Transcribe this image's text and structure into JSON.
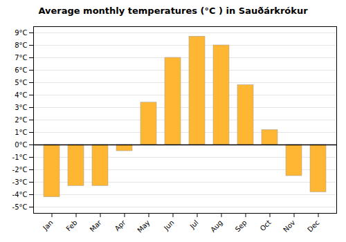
{
  "chart_data": {
    "type": "bar",
    "title": "Average monthly temperatures (°C ) in Sauðárkrókur",
    "categories": [
      "Jan",
      "Feb",
      "Mar",
      "Apr",
      "May",
      "Jun",
      "Jul",
      "Aug",
      "Sep",
      "Oct",
      "Nov",
      "Dec"
    ],
    "values": [
      -4.2,
      -3.3,
      -3.3,
      -0.5,
      3.4,
      7.0,
      8.7,
      8.0,
      4.8,
      1.2,
      -2.5,
      -3.8
    ],
    "color": "#FFB733",
    "ylim": [
      -5.5,
      9.5
    ],
    "yticks": [
      {
        "value": -5,
        "label": "-5°C"
      },
      {
        "value": -4,
        "label": "-4°C"
      },
      {
        "value": -3,
        "label": "-3°C"
      },
      {
        "value": -2,
        "label": "-2°C"
      },
      {
        "value": -1,
        "label": "-1°C"
      },
      {
        "value": 0,
        "label": "0°C"
      },
      {
        "value": 1,
        "label": "1°C"
      },
      {
        "value": 2,
        "label": "2°C"
      },
      {
        "value": 3,
        "label": "3°C"
      },
      {
        "value": 4,
        "label": "4°C"
      },
      {
        "value": 5,
        "label": "5°C"
      },
      {
        "value": 6,
        "label": "6°C"
      },
      {
        "value": 7,
        "label": "7°C"
      },
      {
        "value": 8,
        "label": "8°C"
      },
      {
        "value": 9,
        "label": "9°C"
      }
    ],
    "grid": true
  }
}
